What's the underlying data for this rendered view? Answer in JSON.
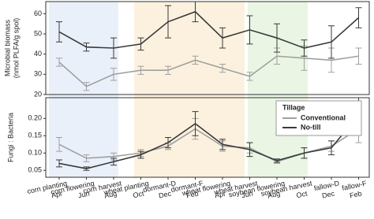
{
  "chart_data": [
    {
      "type": "line",
      "ylabel": [
        "Microbial biomass",
        "(nmol PLFA/g spol)"
      ],
      "ylim": [
        20,
        66
      ],
      "yticks": [
        20,
        30,
        40,
        50,
        60
      ],
      "series": [
        {
          "name": "Conventional",
          "color": "#a0a0a0",
          "values": [
            36,
            24,
            30,
            32,
            32,
            37,
            33,
            29,
            39,
            38,
            37,
            39
          ],
          "errors": [
            2,
            2,
            3,
            2,
            2,
            2,
            2,
            2,
            4,
            6,
            6,
            4
          ]
        },
        {
          "name": "No-till",
          "color": "#3a3a3a",
          "values": [
            51,
            43.5,
            43,
            45,
            56,
            61,
            48,
            52,
            48,
            43,
            46,
            58
          ],
          "errors": [
            5,
            2,
            5,
            3,
            8,
            5,
            5,
            7,
            7,
            4,
            8,
            5
          ]
        }
      ]
    },
    {
      "type": "line",
      "ylabel": "Fungi : Bacteria",
      "ylim": [
        0.03,
        0.26
      ],
      "yticks": [
        0.05,
        {
          "value": 0.1,
          "label": "0.10"
        },
        0.15,
        {
          "value": 0.2,
          "label": "0.20"
        }
      ],
      "categories": [
        "corn planting",
        "corn flowering",
        "corn harvest",
        "wheat planting",
        "dormant-D",
        "dormant-F",
        "wheat flowering",
        "wheat harvest",
        "soybean flowering",
        "soybean harvest",
        "fallow-D",
        "fallow-F"
      ],
      "x_tick_labels": [
        "Apr",
        "Jun",
        "Aug",
        "Oct",
        "Dec",
        "Feb",
        "Apr",
        "Jun",
        "Aug",
        "Oct",
        "Dec",
        "Feb"
      ],
      "legend_title": "Tillage",
      "legend_position": "upper right",
      "series": [
        {
          "name": "Conventional",
          "color": "#a0a0a0",
          "values": [
            0.125,
            0.085,
            0.09,
            0.1,
            0.12,
            0.17,
            0.12,
            0.115,
            0.075,
            0.1,
            0.12,
            0.17
          ],
          "errors": [
            0.02,
            0.01,
            0.01,
            0.01,
            0.01,
            0.03,
            0.015,
            0.015,
            0.005,
            0.015,
            0.015,
            0.04
          ]
        },
        {
          "name": "No-till",
          "color": "#3a3a3a",
          "values": [
            0.07,
            0.055,
            0.075,
            0.095,
            0.13,
            0.185,
            0.125,
            0.11,
            0.078,
            0.1,
            0.115,
            0.21
          ],
          "errors": [
            0.01,
            0.005,
            0.01,
            0.01,
            0.015,
            0.035,
            0.015,
            0.02,
            0.005,
            0.015,
            0.02,
            0.05
          ]
        }
      ]
    }
  ]
}
